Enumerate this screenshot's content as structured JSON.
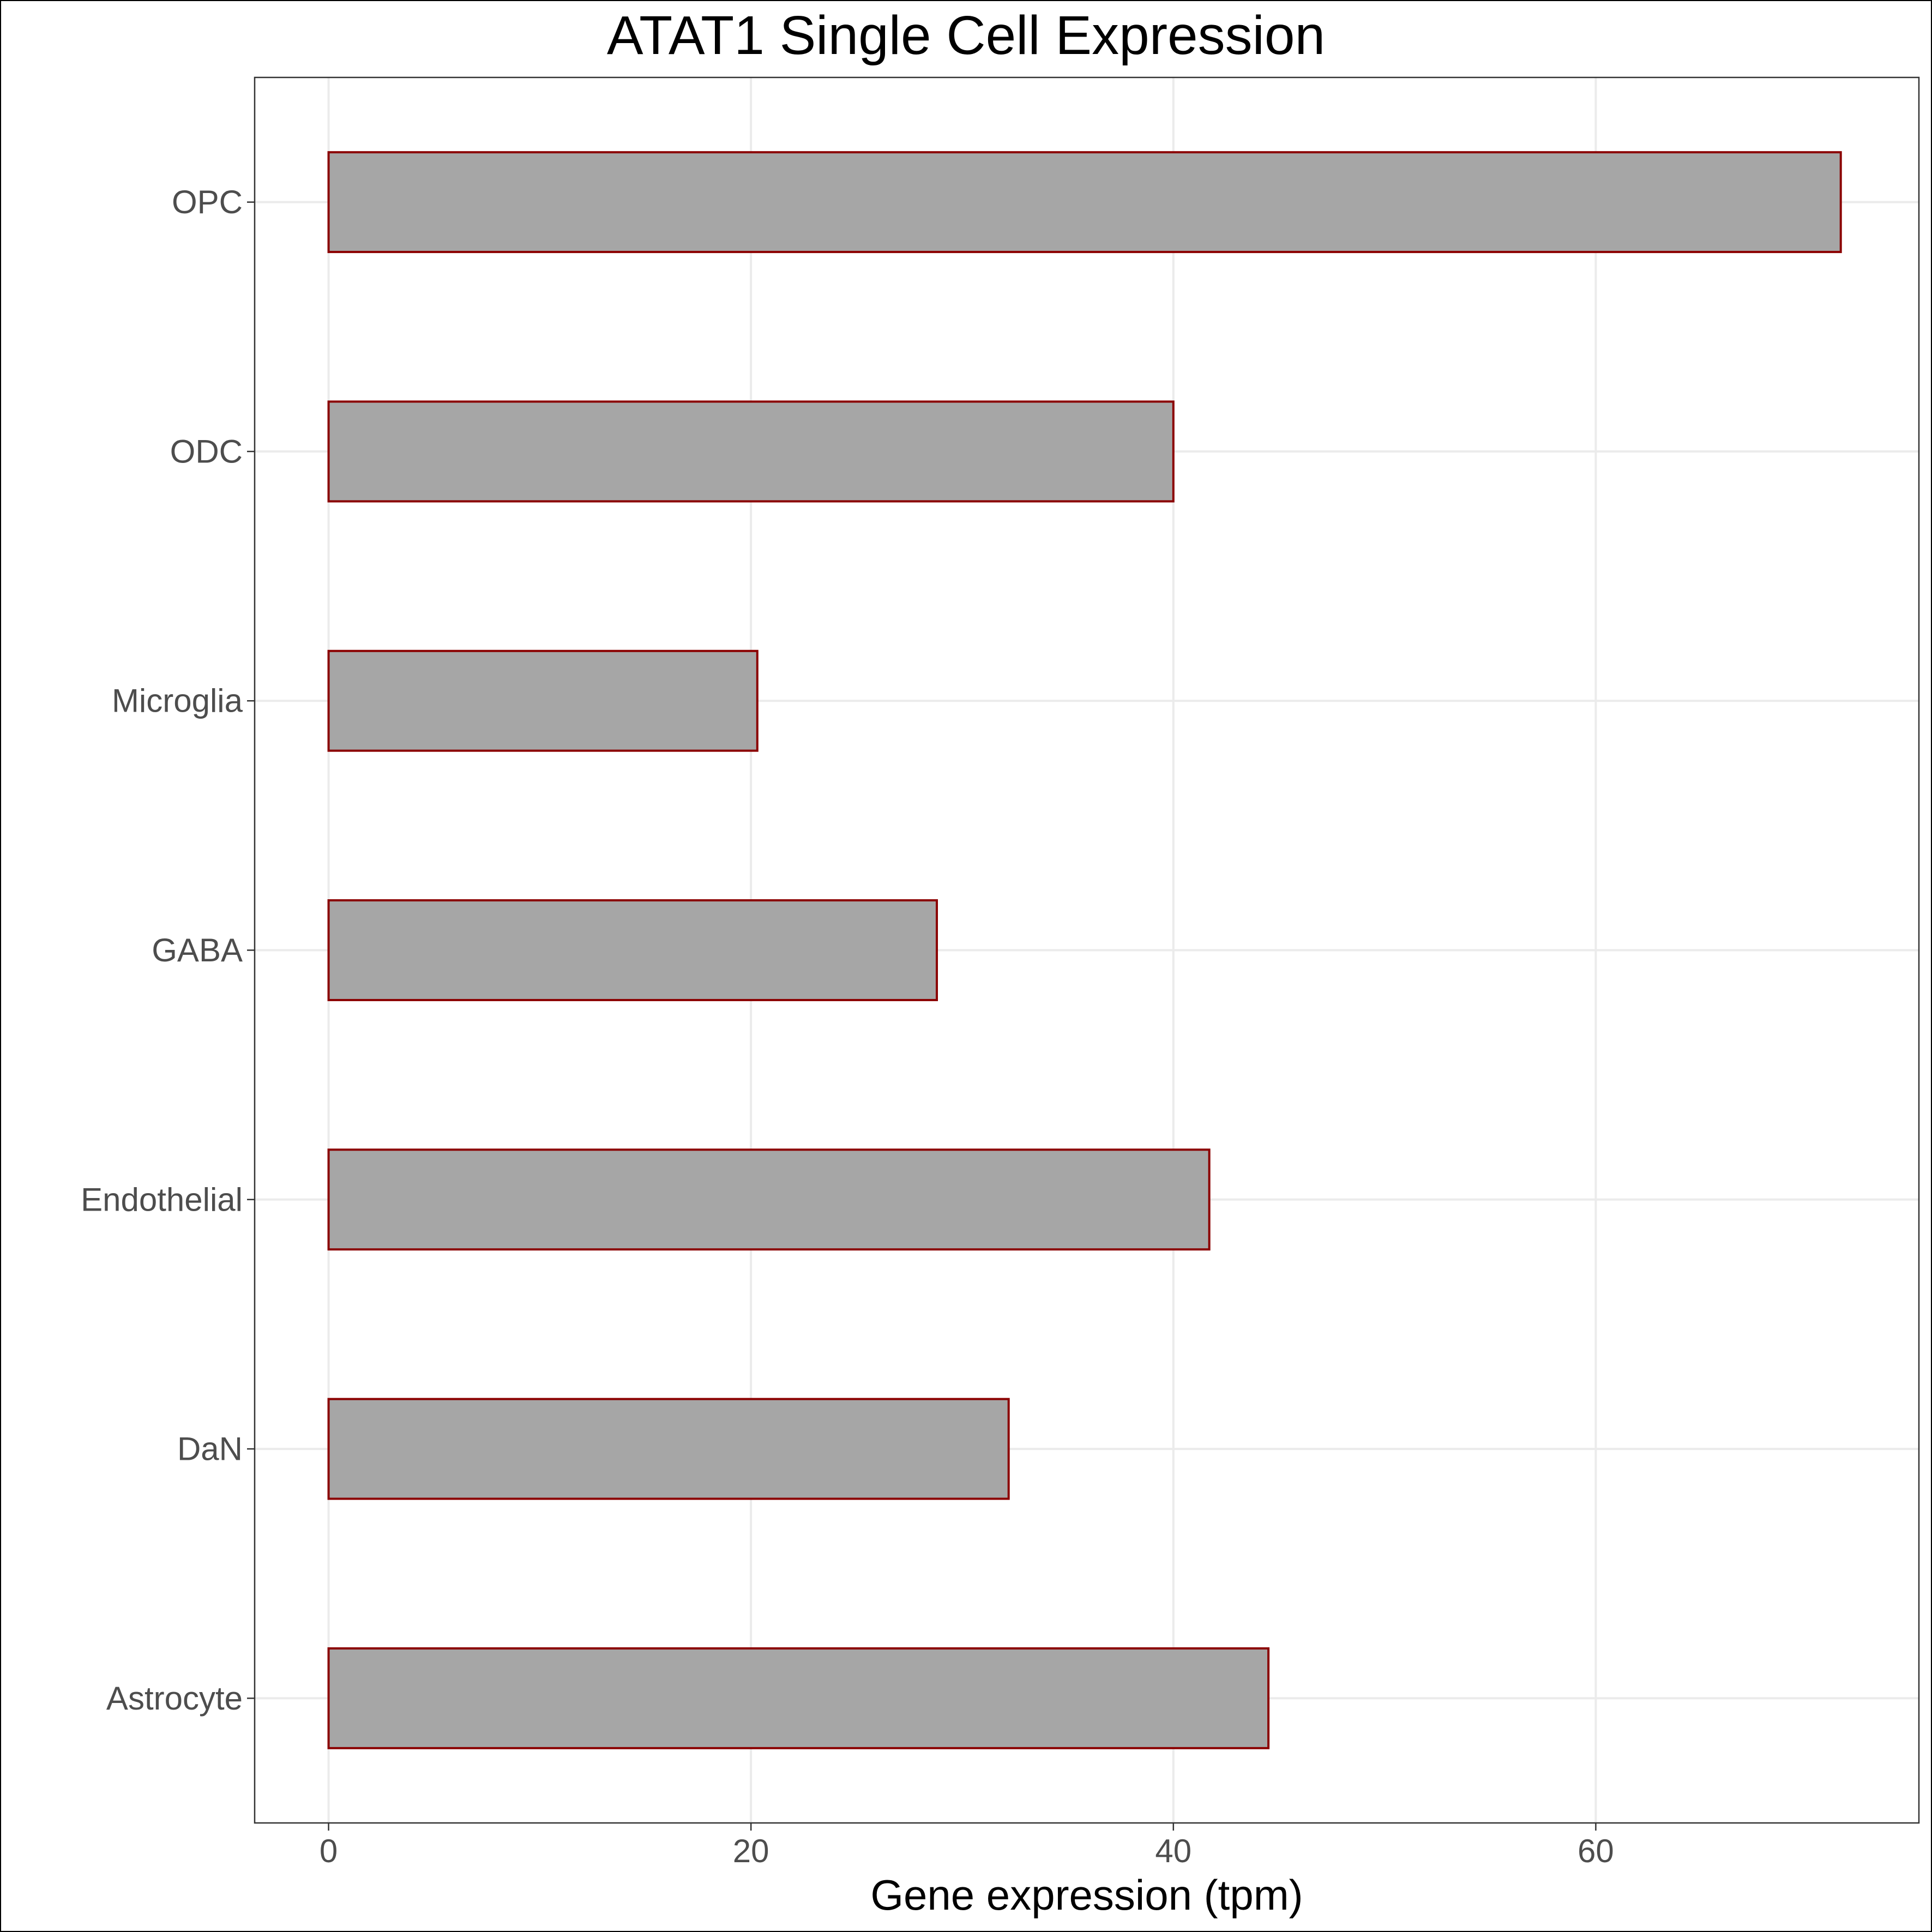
{
  "chart_data": {
    "type": "bar",
    "orientation": "horizontal",
    "title": "ATAT1 Single Cell Expression",
    "xlabel": "Gene expression (tpm)",
    "ylabel": "",
    "categories": [
      "OPC",
      "ODC",
      "Microglia",
      "GABA",
      "Endothelial",
      "DaN",
      "Astrocyte"
    ],
    "values": [
      71.6,
      40.0,
      20.3,
      28.8,
      41.7,
      32.2,
      44.5
    ],
    "xlim": [
      -3.5,
      75.3
    ],
    "xticks": [
      0,
      20,
      40,
      60
    ],
    "grid": true,
    "legend": "none",
    "colors": {
      "bar_fill": "#a6a6a6",
      "bar_outline": "#8b0000",
      "grid": "#ebebeb",
      "panel_border": "#333333",
      "tick_text": "#4d4d4d",
      "title_text": "#000000"
    }
  }
}
